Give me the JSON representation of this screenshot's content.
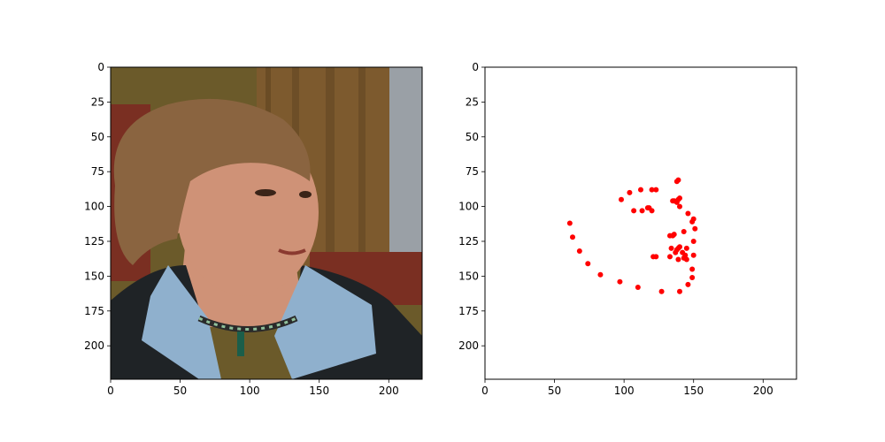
{
  "chart_data": [
    {
      "type": "image",
      "title": "",
      "xlabel": "",
      "ylabel": "",
      "xlim": [
        0,
        224
      ],
      "ylim": [
        224,
        0
      ],
      "x_ticks": [
        0,
        50,
        100,
        150,
        200
      ],
      "y_ticks": [
        0,
        25,
        50,
        75,
        100,
        125,
        150,
        175,
        200
      ],
      "image_content": "photo-of-elderly-woman-with-short-brown-hair-in-dark-cardigan-and-light-blue-collared-shirt-wearing-beaded-necklace-looking-right",
      "colors": {
        "background_top": "#6b5a2a",
        "curtain": "#7d5a2e",
        "wall_right": "#9aa0a6",
        "chair": "#7a2f22",
        "hair": "#8a6440",
        "skin": "#cf9277",
        "shirt": "#8fb0cd",
        "cardigan": "#1f2326"
      }
    },
    {
      "type": "scatter",
      "title": "",
      "xlabel": "",
      "ylabel": "",
      "xlim": [
        0,
        224
      ],
      "ylim": [
        224,
        0
      ],
      "x_ticks": [
        0,
        50,
        100,
        150,
        200
      ],
      "y_ticks": [
        0,
        25,
        50,
        75,
        100,
        125,
        150,
        175,
        200
      ],
      "marker_color": "#ff0000",
      "x": [
        61,
        63,
        68,
        74,
        83,
        97,
        110,
        127,
        140,
        146,
        149,
        149,
        150,
        150,
        151,
        150,
        149,
        146,
        143,
        136,
        134,
        133,
        139,
        138,
        145,
        142,
        144,
        145,
        143,
        140,
        139,
        137,
        135,
        133,
        121,
        123,
        140,
        138,
        139,
        136,
        138,
        139,
        135,
        140,
        120,
        118,
        117,
        113,
        107,
        98,
        104,
        112,
        120,
        123
      ],
      "y": [
        112,
        122,
        132,
        141,
        149,
        154,
        158,
        161,
        161,
        156,
        151,
        145,
        135,
        125,
        116,
        109,
        111,
        105,
        118,
        120,
        130,
        136,
        138,
        131,
        130,
        133,
        135,
        138,
        137,
        129,
        130,
        133,
        121,
        121,
        136,
        136,
        100,
        97,
        95,
        96,
        82,
        81,
        96,
        94,
        103,
        101,
        101,
        103,
        103,
        95,
        90,
        88,
        88,
        88
      ]
    }
  ]
}
